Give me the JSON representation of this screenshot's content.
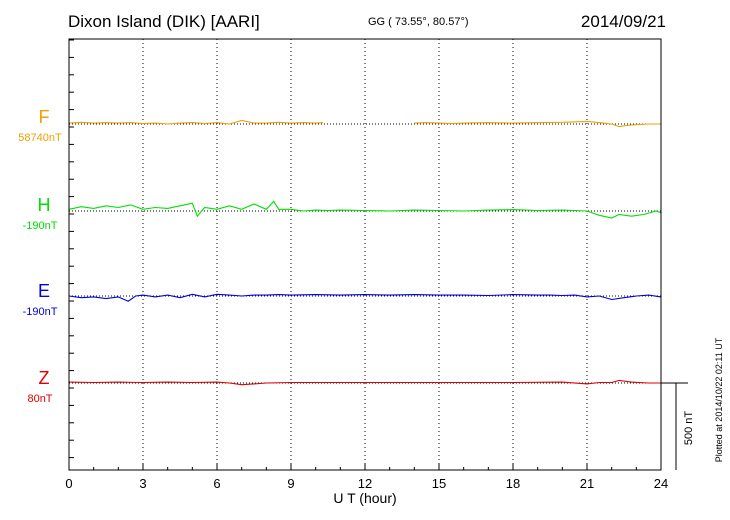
{
  "header": {
    "station": "Dixon Island (DIK)  [AARI]",
    "coords": "GG ( 73.55°,  80.57°)",
    "date": "2014/09/21"
  },
  "side_note": "Plotted at 2014/10/22 02:11 UT",
  "scale_label": "500 nT",
  "colors": {
    "F": "#f0a000",
    "H": "#00e000",
    "E": "#0000e0",
    "Z": "#e00000",
    "axis": "#000000"
  },
  "chart_data": {
    "type": "line",
    "xlabel": "U T (hour)",
    "xlim": [
      0,
      24
    ],
    "x_ticks": [
      "0",
      "3",
      "6",
      "9",
      "12",
      "15",
      "18",
      "21",
      "24"
    ],
    "grid": "dotted vertical every 3 h",
    "series": [
      {
        "name": "F",
        "baseline_label": "58740nT",
        "baseline": 58740,
        "gaps": [
          [
            10.3,
            14.0
          ]
        ],
        "points": [
          [
            0.0,
            -5
          ],
          [
            0.5,
            -10
          ],
          [
            1.0,
            -5
          ],
          [
            1.5,
            -8
          ],
          [
            2.0,
            -5
          ],
          [
            2.5,
            -8
          ],
          [
            3.0,
            -3
          ],
          [
            3.5,
            -5
          ],
          [
            4.0,
            0
          ],
          [
            4.5,
            -5
          ],
          [
            5.0,
            -8
          ],
          [
            5.5,
            -3
          ],
          [
            6.0,
            -8
          ],
          [
            6.5,
            0
          ],
          [
            7.0,
            -20
          ],
          [
            7.5,
            -5
          ],
          [
            8.0,
            -5
          ],
          [
            8.5,
            -10
          ],
          [
            9.0,
            -5
          ],
          [
            9.5,
            -8
          ],
          [
            10.0,
            -5
          ],
          [
            10.3,
            -8
          ],
          [
            14.0,
            -5
          ],
          [
            14.5,
            -8
          ],
          [
            15.0,
            -5
          ],
          [
            15.5,
            -3
          ],
          [
            16.0,
            -5
          ],
          [
            17.0,
            -8
          ],
          [
            18.0,
            -5
          ],
          [
            19.0,
            -8
          ],
          [
            20.0,
            -10
          ],
          [
            21.0,
            -15
          ],
          [
            21.5,
            -8
          ],
          [
            22.0,
            0
          ],
          [
            22.3,
            15
          ],
          [
            22.8,
            5
          ],
          [
            23.5,
            0
          ],
          [
            24.0,
            0
          ]
        ]
      },
      {
        "name": "H",
        "baseline_label": "-190nT",
        "baseline": -190,
        "points": [
          [
            0.0,
            -10
          ],
          [
            0.5,
            -25
          ],
          [
            1.0,
            -15
          ],
          [
            1.5,
            -30
          ],
          [
            2.0,
            -20
          ],
          [
            2.5,
            -35
          ],
          [
            3.0,
            -10
          ],
          [
            3.5,
            -20
          ],
          [
            4.0,
            -15
          ],
          [
            4.5,
            -30
          ],
          [
            5.0,
            -45
          ],
          [
            5.2,
            30
          ],
          [
            5.5,
            -20
          ],
          [
            6.0,
            -10
          ],
          [
            6.5,
            -30
          ],
          [
            7.0,
            -10
          ],
          [
            7.5,
            -40
          ],
          [
            8.0,
            -10
          ],
          [
            8.3,
            -55
          ],
          [
            8.5,
            -10
          ],
          [
            9.0,
            -10
          ],
          [
            9.5,
            0
          ],
          [
            10.0,
            -5
          ],
          [
            10.5,
            -3
          ],
          [
            11.0,
            -5
          ],
          [
            12.0,
            -3
          ],
          [
            13.0,
            0
          ],
          [
            14.0,
            -5
          ],
          [
            15.0,
            -3
          ],
          [
            16.0,
            0
          ],
          [
            17.0,
            -5
          ],
          [
            18.0,
            -8
          ],
          [
            19.0,
            -3
          ],
          [
            20.0,
            -5
          ],
          [
            20.5,
            -3
          ],
          [
            21.0,
            0
          ],
          [
            21.5,
            25
          ],
          [
            22.0,
            40
          ],
          [
            22.3,
            20
          ],
          [
            22.8,
            30
          ],
          [
            23.3,
            20
          ],
          [
            23.8,
            0
          ],
          [
            24.0,
            10
          ]
        ]
      },
      {
        "name": "E",
        "baseline_label": "-190nT",
        "baseline": -190,
        "points": [
          [
            0.0,
            0
          ],
          [
            0.5,
            10
          ],
          [
            1.0,
            5
          ],
          [
            1.5,
            15
          ],
          [
            2.0,
            5
          ],
          [
            2.4,
            30
          ],
          [
            2.7,
            0
          ],
          [
            3.0,
            -5
          ],
          [
            3.5,
            5
          ],
          [
            4.0,
            -5
          ],
          [
            4.5,
            10
          ],
          [
            5.0,
            -10
          ],
          [
            5.5,
            5
          ],
          [
            6.0,
            -10
          ],
          [
            6.5,
            -5
          ],
          [
            7.0,
            0
          ],
          [
            7.5,
            -5
          ],
          [
            8.0,
            -5
          ],
          [
            8.5,
            -8
          ],
          [
            9.0,
            -5
          ],
          [
            10.0,
            -8
          ],
          [
            11.0,
            -5
          ],
          [
            12.0,
            -8
          ],
          [
            13.0,
            -5
          ],
          [
            14.0,
            -8
          ],
          [
            15.0,
            -5
          ],
          [
            16.0,
            -5
          ],
          [
            17.0,
            -3
          ],
          [
            18.0,
            -8
          ],
          [
            19.0,
            -5
          ],
          [
            19.5,
            -5
          ],
          [
            20.0,
            -3
          ],
          [
            20.5,
            -5
          ],
          [
            21.0,
            5
          ],
          [
            21.5,
            0
          ],
          [
            22.0,
            20
          ],
          [
            22.5,
            10
          ],
          [
            23.0,
            0
          ],
          [
            23.5,
            -5
          ],
          [
            24.0,
            5
          ]
        ]
      },
      {
        "name": "Z",
        "baseline_label": "80nT",
        "baseline": 80,
        "points": [
          [
            0.0,
            -5
          ],
          [
            1.0,
            -3
          ],
          [
            2.0,
            -5
          ],
          [
            3.0,
            -3
          ],
          [
            4.0,
            -5
          ],
          [
            5.0,
            -3
          ],
          [
            6.0,
            -5
          ],
          [
            6.5,
            0
          ],
          [
            7.0,
            10
          ],
          [
            7.5,
            5
          ],
          [
            8.0,
            0
          ],
          [
            9.0,
            -3
          ],
          [
            10.0,
            -3
          ],
          [
            12.0,
            -3
          ],
          [
            14.0,
            -3
          ],
          [
            16.0,
            -3
          ],
          [
            18.0,
            -3
          ],
          [
            20.0,
            -5
          ],
          [
            21.0,
            5
          ],
          [
            21.5,
            -3
          ],
          [
            22.0,
            -3
          ],
          [
            22.3,
            -15
          ],
          [
            22.8,
            -5
          ],
          [
            23.5,
            0
          ],
          [
            24.0,
            0
          ]
        ]
      }
    ]
  }
}
